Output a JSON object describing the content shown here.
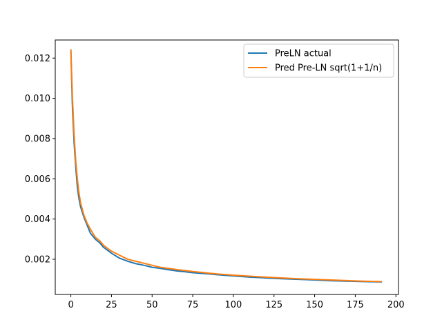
{
  "chart_data": {
    "type": "line",
    "title": "",
    "xlabel": "",
    "ylabel": "",
    "xlim": [
      -9.6,
      201.6
    ],
    "ylim": [
      0.00025,
      0.0129
    ],
    "x_ticks": [
      0,
      25,
      50,
      75,
      100,
      125,
      150,
      175,
      200
    ],
    "y_ticks": [
      0.002,
      0.004,
      0.006,
      0.008,
      0.01,
      0.012
    ],
    "x_tick_labels": [
      "0",
      "25",
      "50",
      "75",
      "100",
      "125",
      "150",
      "175",
      "200"
    ],
    "y_tick_labels": [
      "0.002",
      "0.004",
      "0.006",
      "0.008",
      "0.010",
      "0.012"
    ],
    "grid": false,
    "legend_position": "top-right",
    "series": [
      {
        "name": "PreLN actual",
        "color": "#1f77b4",
        "x": [
          0,
          1,
          2,
          3,
          4,
          5,
          6,
          8,
          10,
          12,
          15,
          18,
          20,
          25,
          30,
          35,
          40,
          45,
          50,
          55,
          60,
          65,
          70,
          75,
          80,
          85,
          90,
          95,
          100,
          110,
          120,
          130,
          140,
          150,
          160,
          170,
          180,
          191
        ],
        "values": [
          0.0124,
          0.0095,
          0.0078,
          0.0066,
          0.0056,
          0.005,
          0.0046,
          0.0041,
          0.0037,
          0.0033,
          0.003,
          0.0028,
          0.0026,
          0.0023,
          0.00205,
          0.0019,
          0.00178,
          0.0017,
          0.0016,
          0.00155,
          0.00148,
          0.00142,
          0.00138,
          0.00133,
          0.0013,
          0.00127,
          0.00123,
          0.0012,
          0.00117,
          0.00111,
          0.00107,
          0.00103,
          0.001,
          0.00097,
          0.00093,
          0.00091,
          0.00089,
          0.00087
        ]
      },
      {
        "name": "Pred Pre-LN sqrt(1+1/n)",
        "color": "#ff7f0e",
        "x": [
          0,
          1,
          2,
          3,
          4,
          5,
          6,
          8,
          10,
          12,
          15,
          18,
          20,
          25,
          30,
          35,
          40,
          45,
          50,
          55,
          60,
          65,
          70,
          75,
          80,
          85,
          90,
          95,
          100,
          110,
          120,
          130,
          140,
          150,
          160,
          170,
          180,
          191
        ],
        "values": [
          0.0124,
          0.01,
          0.0082,
          0.0069,
          0.006,
          0.0053,
          0.0048,
          0.0042,
          0.0038,
          0.0035,
          0.0031,
          0.0029,
          0.0027,
          0.0024,
          0.0022,
          0.002,
          0.0019,
          0.0018,
          0.0017,
          0.0016,
          0.00155,
          0.00149,
          0.00144,
          0.00139,
          0.00135,
          0.00131,
          0.00127,
          0.00124,
          0.00121,
          0.00116,
          0.00111,
          0.00107,
          0.00103,
          0.001,
          0.00097,
          0.00094,
          0.00091,
          0.00089
        ]
      }
    ]
  }
}
